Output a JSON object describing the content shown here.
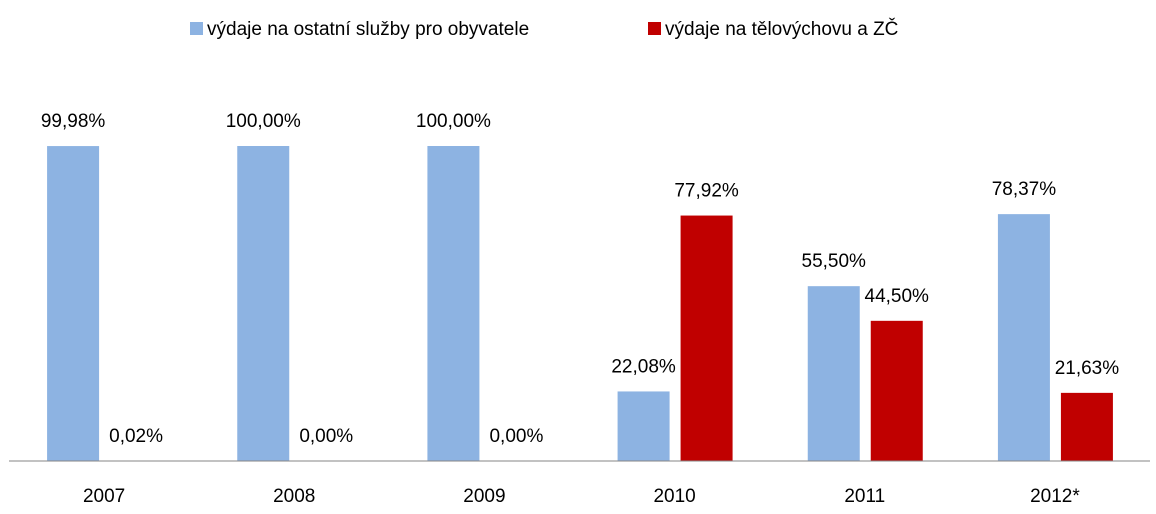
{
  "chart_data": {
    "type": "bar",
    "categories": [
      "2007",
      "2008",
      "2009",
      "2010",
      "2011",
      "2012*"
    ],
    "series": [
      {
        "name": "výdaje na ostatní služby pro obyvatele",
        "color": "#8db3e2",
        "values": [
          99.98,
          100.0,
          100.0,
          22.08,
          55.5,
          78.37
        ],
        "value_labels": [
          "99,98%",
          "100,00%",
          "100,00%",
          "22,08%",
          "55,50%",
          "78,37%"
        ]
      },
      {
        "name": "výdaje na tělovýchovu a ZČ",
        "color": "#c00000",
        "values": [
          0.02,
          0.0,
          0.0,
          77.92,
          44.5,
          21.63
        ],
        "value_labels": [
          "0,02%",
          "0,00%",
          "0,00%",
          "77,92%",
          "44,50%",
          "21,63%"
        ]
      }
    ],
    "legend": "top"
  }
}
